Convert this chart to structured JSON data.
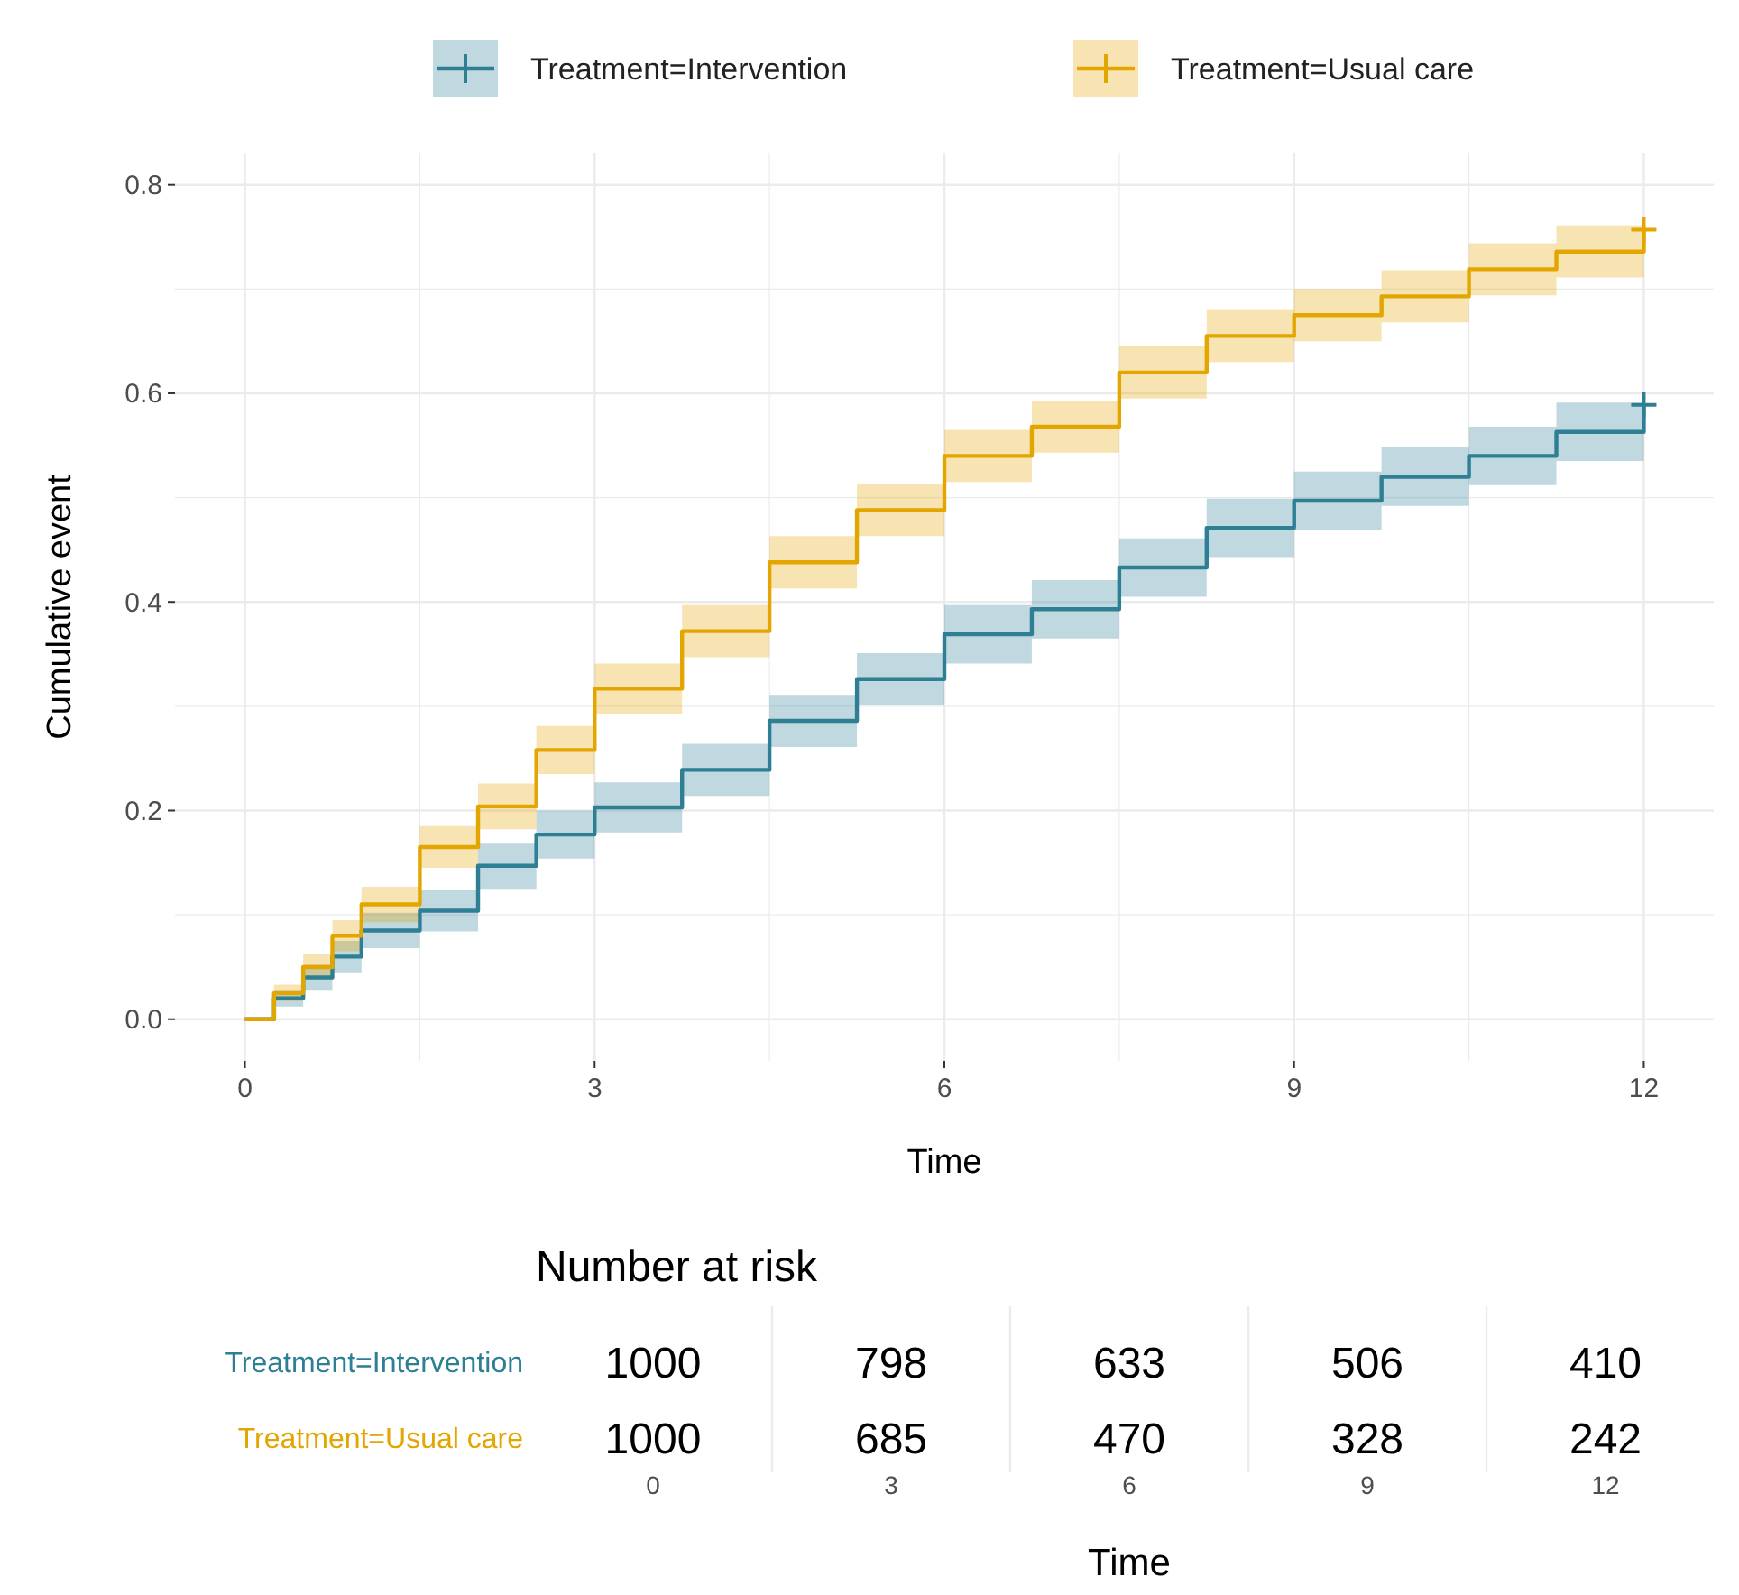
{
  "chart_data": [
    {
      "type": "step",
      "xlabel": "Time",
      "ylabel": "Cumulative event",
      "xlim": [
        -0.6,
        12.6
      ],
      "ylim": [
        -0.04,
        0.83
      ],
      "xticks": [
        0,
        3,
        6,
        9,
        12
      ],
      "yticks": [
        {
          "value": 0,
          "label": "0.0"
        },
        {
          "value": 0.2,
          "label": "0.2"
        },
        {
          "value": 0.4,
          "label": "0.4"
        },
        {
          "value": 0.6,
          "label": "0.6"
        },
        {
          "value": 0.8,
          "label": "0.8"
        }
      ],
      "grid": true,
      "legend": "top",
      "line_style": "solid",
      "x": [
        0,
        0.25,
        0.5,
        0.75,
        1,
        1.5,
        2,
        2.5,
        3,
        3.75,
        4.5,
        5.25,
        6,
        6.75,
        7.5,
        8.25,
        9,
        9.75,
        10.5,
        11.25,
        12
      ],
      "series": [
        {
          "name": "Treatment=Intervention",
          "color": "#2e7f94",
          "values": [
            0,
            0.02,
            0.04,
            0.06,
            0.085,
            0.104,
            0.147,
            0.177,
            0.203,
            0.239,
            0.286,
            0.326,
            0.369,
            0.393,
            0.433,
            0.471,
            0.497,
            0.52,
            0.54,
            0.563,
            0.589
          ],
          "lower": [
            0,
            0.012,
            0.028,
            0.045,
            0.068,
            0.084,
            0.125,
            0.154,
            0.179,
            0.214,
            0.261,
            0.301,
            0.341,
            0.365,
            0.405,
            0.443,
            0.469,
            0.492,
            0.512,
            0.535,
            0.561
          ],
          "upper": [
            0,
            0.028,
            0.052,
            0.075,
            0.102,
            0.124,
            0.169,
            0.2,
            0.227,
            0.264,
            0.311,
            0.351,
            0.397,
            0.421,
            0.461,
            0.499,
            0.525,
            0.548,
            0.568,
            0.591,
            0.617
          ]
        },
        {
          "name": "Treatment=Usual care",
          "color": "#e3a600",
          "values": [
            0,
            0.025,
            0.05,
            0.08,
            0.11,
            0.165,
            0.204,
            0.258,
            0.317,
            0.372,
            0.438,
            0.488,
            0.54,
            0.568,
            0.62,
            0.655,
            0.675,
            0.693,
            0.719,
            0.736,
            0.757
          ],
          "lower": [
            0,
            0.017,
            0.038,
            0.065,
            0.093,
            0.145,
            0.182,
            0.235,
            0.293,
            0.347,
            0.413,
            0.463,
            0.515,
            0.543,
            0.595,
            0.63,
            0.65,
            0.668,
            0.694,
            0.711,
            0.732
          ],
          "upper": [
            0,
            0.033,
            0.062,
            0.095,
            0.127,
            0.185,
            0.226,
            0.281,
            0.341,
            0.397,
            0.463,
            0.513,
            0.565,
            0.593,
            0.645,
            0.68,
            0.7,
            0.718,
            0.744,
            0.761,
            0.782
          ]
        },
        {
          "type": "scatter",
          "marker": "cross",
          "color": "#2e7f94",
          "x": [
            12
          ],
          "values": [
            0.589
          ]
        },
        {
          "type": "scatter",
          "marker": "cross",
          "color": "#e3a600",
          "x": [
            12
          ],
          "values": [
            0.757
          ]
        }
      ]
    },
    {
      "type": "heatmap",
      "title": "Number at risk",
      "data_labels": true,
      "xlabel": "Time",
      "categories": [
        "0",
        "3",
        "6",
        "9",
        "12"
      ],
      "y_categories": [
        "Treatment=Intervention",
        "Treatment=Usual care"
      ],
      "cells": [
        [
          1000,
          798,
          633,
          506,
          410
        ],
        [
          1000,
          685,
          470,
          328,
          242
        ]
      ]
    }
  ]
}
